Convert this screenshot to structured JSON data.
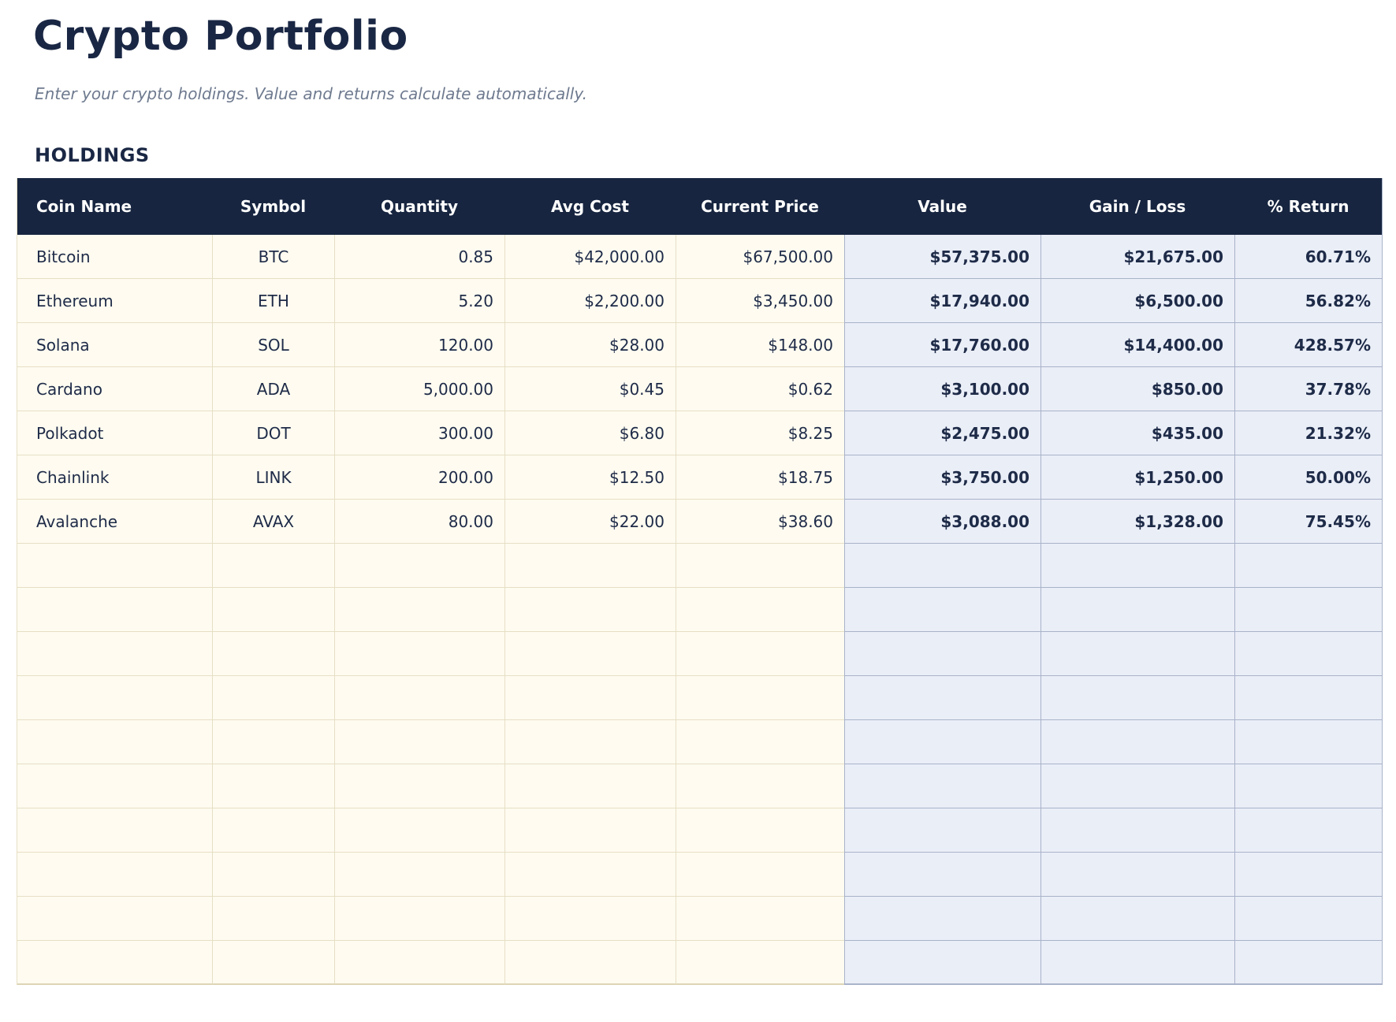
{
  "page": {
    "title": "Crypto Portfolio",
    "subtitle": "Enter your crypto holdings. Value and returns calculate automatically.",
    "section_label": "HOLDINGS"
  },
  "table": {
    "columns": [
      {
        "label": "Coin Name",
        "align": "left",
        "computed": false
      },
      {
        "label": "Symbol",
        "align": "center",
        "computed": false
      },
      {
        "label": "Quantity",
        "align": "right",
        "computed": false
      },
      {
        "label": "Avg Cost",
        "align": "right",
        "computed": false
      },
      {
        "label": "Current Price",
        "align": "right",
        "computed": false
      },
      {
        "label": "Value",
        "align": "right",
        "computed": true
      },
      {
        "label": "Gain / Loss",
        "align": "right",
        "computed": true
      },
      {
        "label": "% Return",
        "align": "right",
        "computed": true
      }
    ],
    "rows": [
      [
        "Bitcoin",
        "BTC",
        "0.85",
        "$42,000.00",
        "$67,500.00",
        "$57,375.00",
        "$21,675.00",
        "60.71%"
      ],
      [
        "Ethereum",
        "ETH",
        "5.20",
        "$2,200.00",
        "$3,450.00",
        "$17,940.00",
        "$6,500.00",
        "56.82%"
      ],
      [
        "Solana",
        "SOL",
        "120.00",
        "$28.00",
        "$148.00",
        "$17,760.00",
        "$14,400.00",
        "428.57%"
      ],
      [
        "Cardano",
        "ADA",
        "5,000.00",
        "$0.45",
        "$0.62",
        "$3,100.00",
        "$850.00",
        "37.78%"
      ],
      [
        "Polkadot",
        "DOT",
        "300.00",
        "$6.80",
        "$8.25",
        "$2,475.00",
        "$435.00",
        "21.32%"
      ],
      [
        "Chainlink",
        "LINK",
        "200.00",
        "$12.50",
        "$18.75",
        "$3,750.00",
        "$1,250.00",
        "50.00%"
      ],
      [
        "Avalanche",
        "AVAX",
        "80.00",
        "$22.00",
        "$38.60",
        "$3,088.00",
        "$1,328.00",
        "75.45%"
      ]
    ],
    "empty_row_count": 10
  },
  "colors": {
    "title_text": "#1a2744",
    "subtitle_text": "#6e7a8f",
    "header_bg": "#172540",
    "header_text": "#ffffff",
    "cell_text": "#1e2b48",
    "input_bg": "#fffbf0",
    "input_border": "#e6dfc5",
    "computed_bg": "#eaeef7",
    "computed_border": "#a9b3c9"
  }
}
